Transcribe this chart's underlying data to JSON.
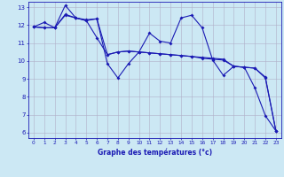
{
  "xlabel": "Graphe des températures (°c)",
  "background_color": "#cce8f4",
  "grid_color": "#b0b0c8",
  "line_color": "#1a1ab4",
  "xlim": [
    -0.5,
    23.5
  ],
  "ylim": [
    5.7,
    13.3
  ],
  "yticks": [
    6,
    7,
    8,
    9,
    10,
    11,
    12,
    13
  ],
  "xticks": [
    0,
    1,
    2,
    3,
    4,
    5,
    6,
    7,
    8,
    9,
    10,
    11,
    12,
    13,
    14,
    15,
    16,
    17,
    18,
    19,
    20,
    21,
    22,
    23
  ],
  "line1_x": [
    0,
    1,
    2,
    3,
    4,
    5,
    6,
    7,
    8,
    9,
    10,
    11,
    12,
    13,
    14,
    15,
    16,
    17,
    18,
    19,
    20,
    21,
    22,
    23
  ],
  "line1_y": [
    11.9,
    12.15,
    11.85,
    13.1,
    12.4,
    12.3,
    12.35,
    9.85,
    9.05,
    9.85,
    10.5,
    11.55,
    11.1,
    11.0,
    12.4,
    12.55,
    11.85,
    10.05,
    9.2,
    9.7,
    9.65,
    8.5,
    6.95,
    6.1
  ],
  "line2_x": [
    0,
    1,
    2,
    3,
    4,
    5,
    6,
    7,
    8,
    9,
    10,
    11,
    12,
    13,
    14,
    15,
    16,
    17,
    18,
    19,
    20,
    21,
    22,
    23
  ],
  "line2_y": [
    11.9,
    11.85,
    11.85,
    12.6,
    12.4,
    12.25,
    11.3,
    10.35,
    10.5,
    10.55,
    10.5,
    10.45,
    10.4,
    10.35,
    10.3,
    10.25,
    10.15,
    10.1,
    10.05,
    9.7,
    9.65,
    9.6,
    9.05,
    6.1
  ],
  "line3_x": [
    0,
    1,
    2,
    3,
    4,
    5,
    6,
    7,
    8,
    9,
    10,
    11,
    12,
    13,
    14,
    15,
    16,
    17,
    18,
    19,
    20,
    21,
    22,
    23
  ],
  "line3_y": [
    11.9,
    11.85,
    11.85,
    12.55,
    12.4,
    12.25,
    12.35,
    10.35,
    10.5,
    10.55,
    10.5,
    10.45,
    10.4,
    10.35,
    10.3,
    10.25,
    10.2,
    10.15,
    10.1,
    9.7,
    9.65,
    9.6,
    9.1,
    6.1
  ]
}
